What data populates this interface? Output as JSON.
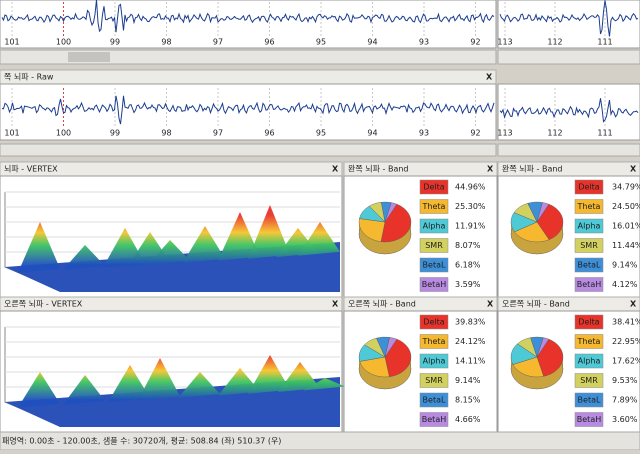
{
  "top_trace": {
    "ticks": [
      "101",
      "100",
      "99",
      "98",
      "97",
      "96",
      "95",
      "94",
      "93",
      "92"
    ],
    "right_ticks": [
      "113",
      "112",
      "111"
    ]
  },
  "raw_panel": {
    "title": "쪽 뇌파 - Raw"
  },
  "close": "X",
  "vertex_panels": [
    {
      "title": "뇌파 - VERTEX"
    },
    {
      "title": "오른쪽 뇌파 - VERTEX"
    }
  ],
  "band_names": [
    "Delta",
    "Theta",
    "Alpha",
    "SMR",
    "BetaL",
    "BetaH"
  ],
  "band_colors": [
    "#e8332a",
    "#f5b82e",
    "#4ec9d6",
    "#d2d160",
    "#3d8fd8",
    "#b88ae2"
  ],
  "band_panels": [
    {
      "title": "완쪽 뇌파 - Band",
      "values": [
        44.96,
        25.3,
        11.91,
        8.07,
        6.18,
        3.59
      ],
      "value_labels": [
        "44.96%",
        "25.30%",
        "11.91%",
        "8.07%",
        "6.18%",
        "3.59%"
      ]
    },
    {
      "title": "완쪽 뇌파 - Band",
      "values": [
        34.79,
        24.5,
        16.01,
        11.44,
        9.14,
        4.12
      ],
      "value_labels": [
        "34.79%",
        "24.50%",
        "16.01%",
        "11.44%",
        "9.14%",
        "4.12%"
      ]
    },
    {
      "title": "오른쪽 뇌파 - Band",
      "values": [
        39.83,
        24.12,
        14.11,
        9.14,
        8.15,
        4.66
      ],
      "value_labels": [
        "39.83%",
        "24.12%",
        "14.11%",
        "9.14%",
        "8.15%",
        "4.66%"
      ]
    },
    {
      "title": "오른쪽 뇌파 - Band",
      "values": [
        38.41,
        22.95,
        17.62,
        9.53,
        7.89,
        3.6
      ],
      "value_labels": [
        "38.41%",
        "22.95%",
        "17.62%",
        "9.53%",
        "7.89%",
        "3.60%"
      ]
    }
  ],
  "status": "패영역: 0.00초 - 120.00초, 샘플 수: 30720개, 평균: 508.84 (좌) 510.37 (우)"
}
